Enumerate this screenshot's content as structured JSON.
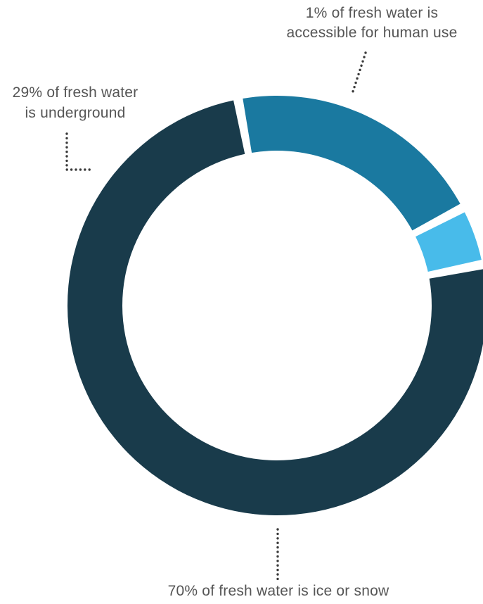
{
  "chart_data": {
    "type": "pie",
    "variant": "donut",
    "title": "",
    "start_angle_deg": 79,
    "gap_deg": 2.6,
    "slices": [
      {
        "label_lines": [
          "70% of fresh water is ice or snow"
        ],
        "value": 70,
        "color": "#193b4b"
      },
      {
        "label_lines": [
          "29% of fresh water",
          "is underground"
        ],
        "value": 29,
        "color": "#1a79a0"
      },
      {
        "label_lines": [
          "1% of fresh water is",
          "accessible for human use"
        ],
        "value": 1,
        "color": "#48bbea"
      }
    ],
    "label_color": "#555555",
    "leader_color": "#3a3a3a"
  }
}
